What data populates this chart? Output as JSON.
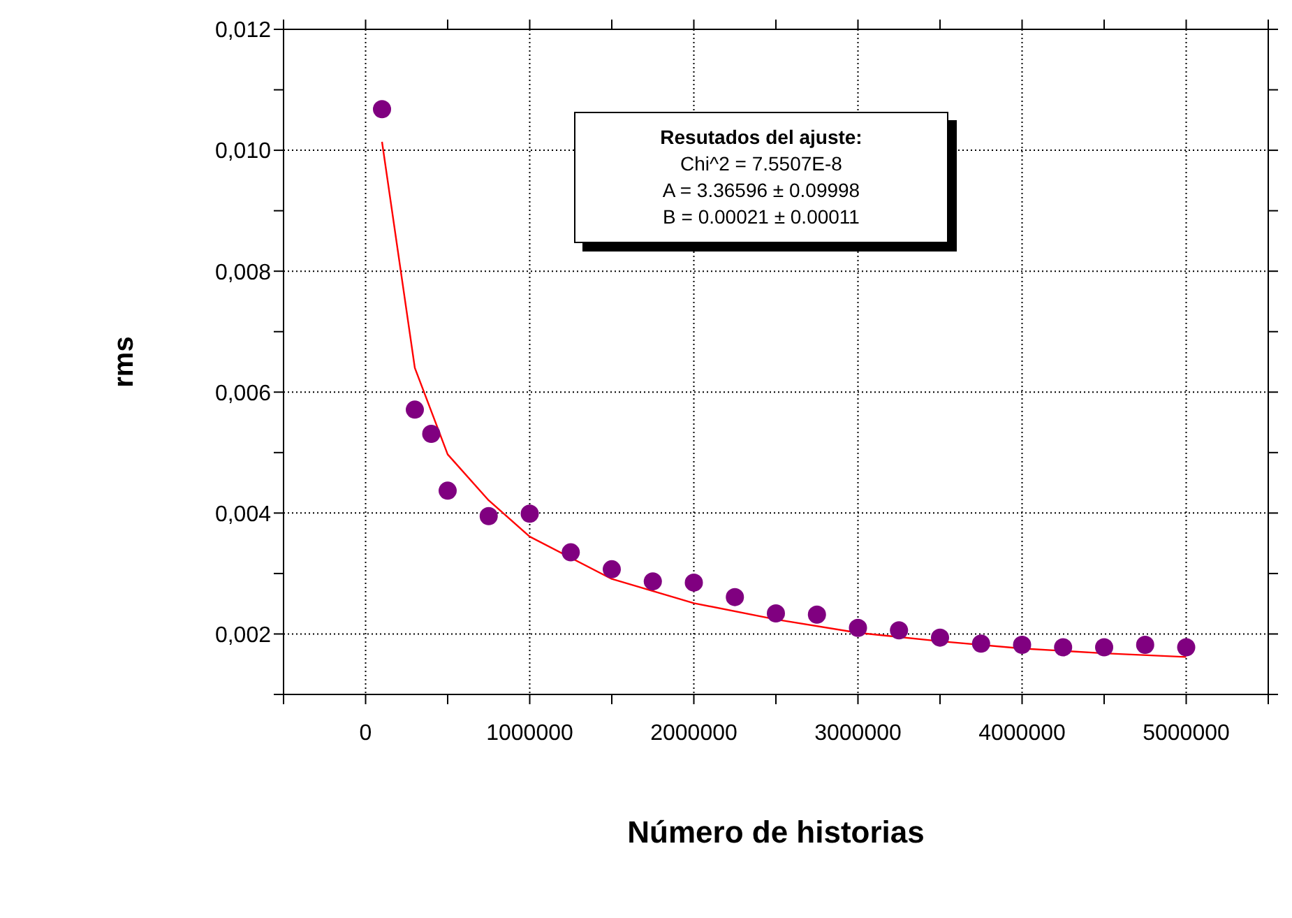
{
  "chart_data": {
    "type": "scatter",
    "xlabel": "Número de historias",
    "ylabel": "rms",
    "annotations": [
      "Resutados del ajuste:",
      "Chi^2 = 7.5507E-8",
      "A = 3.36596 ± 0.09998",
      "B = 0.00021 ± 0.00011"
    ],
    "xlim": [
      -500000,
      5500000
    ],
    "ylim": [
      0.001,
      0.012
    ],
    "xticks": [
      {
        "value": -500000,
        "label": null
      },
      0,
      {
        "value": 500000,
        "label": null
      },
      1000000,
      {
        "value": 1500000,
        "label": null
      },
      2000000,
      {
        "value": 2500000,
        "label": null
      },
      3000000,
      {
        "value": 3500000,
        "label": null
      },
      4000000,
      {
        "value": 4500000,
        "label": null
      },
      5000000,
      {
        "value": 5500000,
        "label": null
      }
    ],
    "yticks": [
      {
        "value": 0.001,
        "label": null
      },
      {
        "value": 0.002,
        "label": "0,002"
      },
      {
        "value": 0.003,
        "label": null
      },
      {
        "value": 0.004,
        "label": "0,004"
      },
      {
        "value": 0.005,
        "label": null
      },
      {
        "value": 0.006,
        "label": "0,006"
      },
      {
        "value": 0.007,
        "label": null
      },
      {
        "value": 0.008,
        "label": "0,008"
      },
      {
        "value": 0.009,
        "label": null
      },
      {
        "value": 0.01,
        "label": "0,010"
      },
      {
        "value": 0.011,
        "label": null
      },
      {
        "value": 0.012,
        "label": "0,012"
      }
    ],
    "grid": true,
    "legend": false,
    "marker": "circle",
    "series": [
      {
        "color": "#800080",
        "x": [
          100000,
          300000,
          400000,
          500000,
          750000,
          1000000,
          1250000,
          1500000,
          1750000,
          2000000,
          2250000,
          2500000,
          2750000,
          3000000,
          3250000,
          3500000,
          3750000,
          4000000,
          4250000,
          4500000,
          4750000,
          5000000
        ],
        "values": [
          0.01068,
          0.00571,
          0.00531,
          0.00437,
          0.00395,
          0.00399,
          0.00335,
          0.00307,
          0.00287,
          0.00285,
          0.00261,
          0.00234,
          0.00232,
          0.0021,
          0.00206,
          0.00194,
          0.00184,
          0.00182,
          0.00178,
          0.00178,
          0.00182,
          0.00178
        ]
      },
      {
        "type": "line",
        "color": "#ff0000",
        "marker": "none",
        "x": [
          100000,
          300000,
          500000,
          750000,
          1000000,
          1500000,
          2000000,
          2500000,
          3000000,
          3500000,
          4000000,
          4500000,
          5000000
        ],
        "values": [
          0.01014,
          0.0064,
          0.00497,
          0.00421,
          0.00361,
          0.00291,
          0.00251,
          0.00224,
          0.00202,
          0.00188,
          0.00176,
          0.00168,
          0.00162
        ]
      }
    ]
  }
}
